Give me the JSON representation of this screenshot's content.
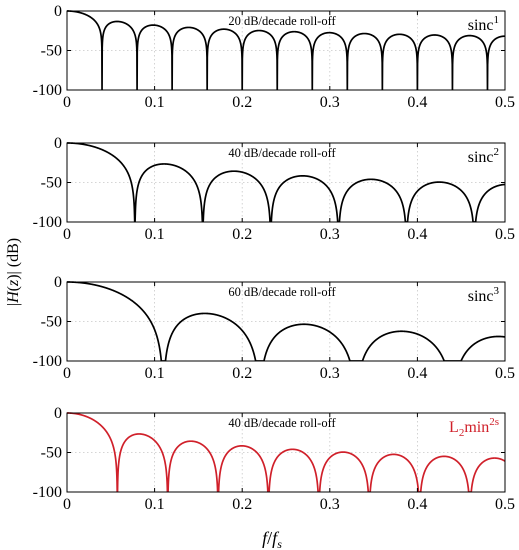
{
  "figure": {
    "ylabel": "|H(z)| (dB)",
    "xlabel": "f/f_s",
    "xlabel_main": "f",
    "xlabel_sub": "s"
  },
  "chart_data": [
    {
      "type": "line",
      "annotation": "20 dB/decade roll-off",
      "label": "sinc¹",
      "label_base": "sinc",
      "label_sup": "1",
      "label_sub": "",
      "order": 1,
      "first_null": 0.04,
      "color": "#000000",
      "xlim": [
        0,
        0.5
      ],
      "ylim": [
        -100,
        0
      ],
      "xticks": [
        "0",
        "0.1",
        "0.2",
        "0.3",
        "0.4",
        "0.5"
      ],
      "yticks": [
        "0",
        "-50",
        "-100"
      ],
      "grid": true
    },
    {
      "type": "line",
      "annotation": "40 dB/decade roll-off",
      "label": "sinc²",
      "label_base": "sinc",
      "label_sup": "2",
      "label_sub": "",
      "order": 2,
      "first_null": 0.0775,
      "color": "#000000",
      "xlim": [
        0,
        0.5
      ],
      "ylim": [
        -100,
        0
      ],
      "xticks": [
        "0",
        "0.1",
        "0.2",
        "0.3",
        "0.4",
        "0.5"
      ],
      "yticks": [
        "0",
        "-50",
        "-100"
      ],
      "grid": true
    },
    {
      "type": "line",
      "annotation": "60 dB/decade roll-off",
      "label": "sinc³",
      "label_base": "sinc",
      "label_sup": "3",
      "label_sub": "",
      "order": 3,
      "first_null": 0.11,
      "color": "#000000",
      "xlim": [
        0,
        0.5
      ],
      "ylim": [
        -100,
        0
      ],
      "xticks": [
        "0",
        "0.1",
        "0.2",
        "0.3",
        "0.4",
        "0.5"
      ],
      "yticks": [
        "0",
        "-50",
        "-100"
      ],
      "grid": true
    },
    {
      "type": "line",
      "annotation": "40 dB/decade roll-off",
      "label": "L₂min²ˢ",
      "label_base": "L",
      "label_sub": "2",
      "label_mid": "min",
      "label_sup": "2s",
      "order": 2,
      "first_null": 0.0575,
      "color": "#d0202a",
      "xlim": [
        0,
        0.5
      ],
      "ylim": [
        -100,
        0
      ],
      "xticks": [
        "0",
        "0.1",
        "0.2",
        "0.3",
        "0.4",
        "0.5"
      ],
      "yticks": [
        "0",
        "-50",
        "-100"
      ],
      "grid": true
    }
  ]
}
